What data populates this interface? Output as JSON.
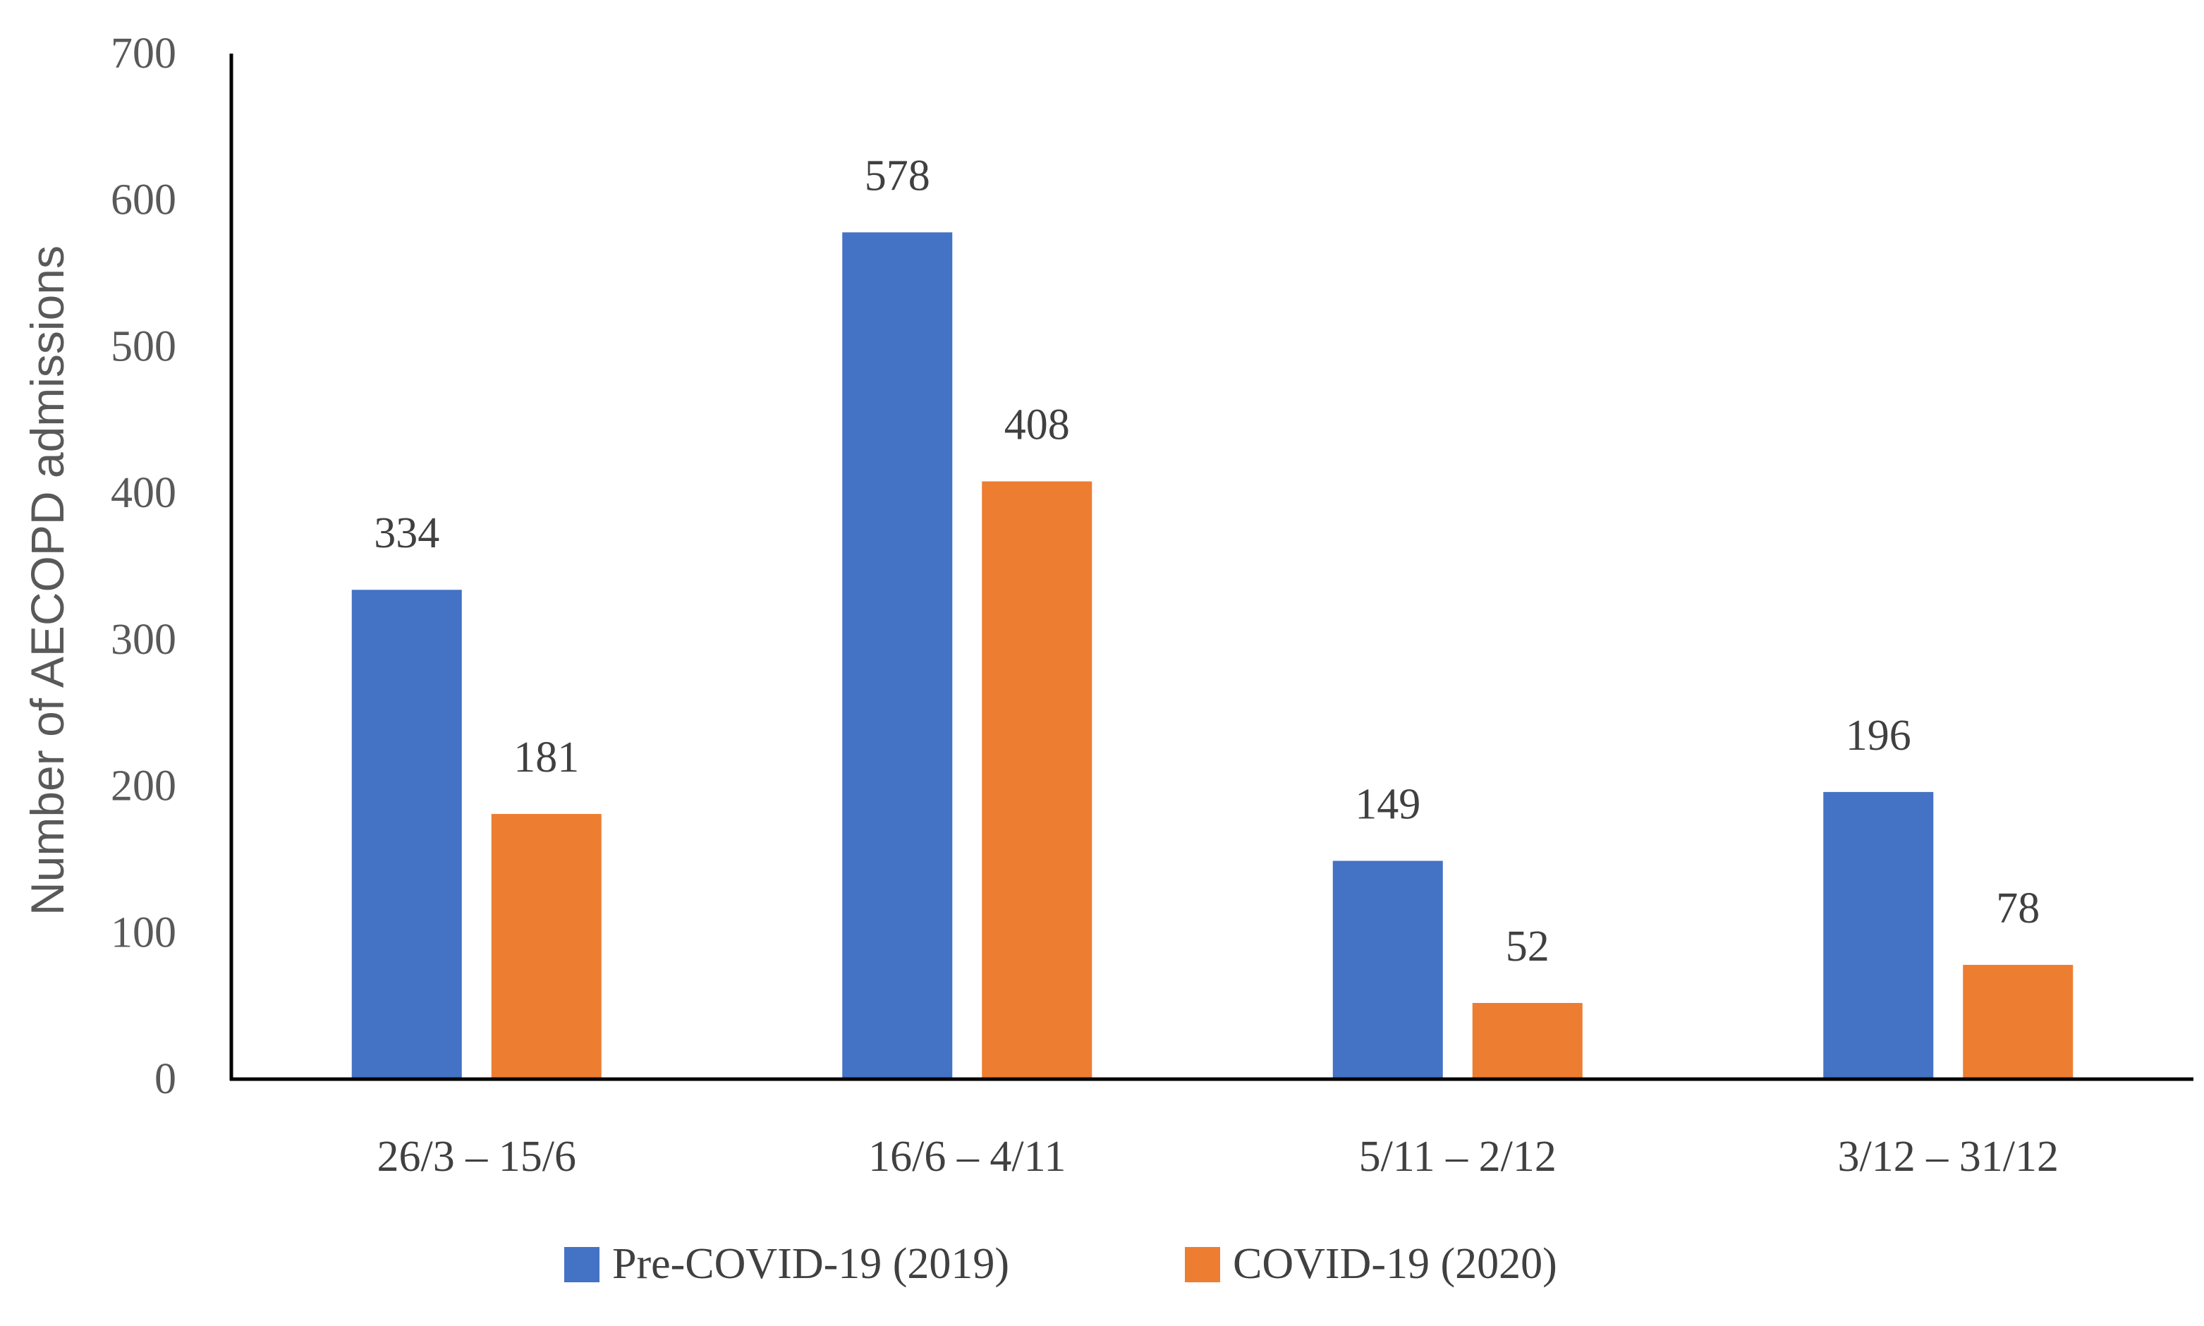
{
  "chart_data": {
    "type": "bar",
    "title": "",
    "xlabel": "",
    "ylabel": "Number of AECOPD admissions",
    "ylim": [
      0,
      700
    ],
    "yticks": [
      0,
      100,
      200,
      300,
      400,
      500,
      600,
      700
    ],
    "categories": [
      "26/3 – 15/6",
      "16/6 – 4/11",
      "5/11 – 2/12",
      "3/12 – 31/12"
    ],
    "series": [
      {
        "name": "Pre-COVID-19 (2019)",
        "color": "#4472C4",
        "values": [
          334,
          578,
          149,
          196
        ]
      },
      {
        "name": "COVID-19 (2020)",
        "color": "#ED7D31",
        "values": [
          181,
          408,
          52,
          78
        ]
      }
    ],
    "legend": "bottom",
    "grid": false,
    "data_labels": true
  }
}
